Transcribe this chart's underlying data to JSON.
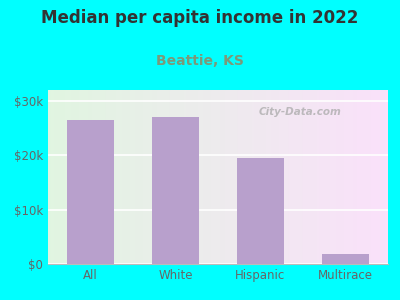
{
  "title": "Median per capita income in 2022",
  "subtitle": "Beattie, KS",
  "categories": [
    "All",
    "White",
    "Hispanic",
    "Multirace"
  ],
  "values": [
    26500,
    27000,
    19500,
    1800
  ],
  "bar_color": "#b8a0cc",
  "background_outer": "#00FFFF",
  "title_color": "#333333",
  "subtitle_color": "#7a9a7a",
  "tick_label_color": "#666666",
  "ytick_labels": [
    "$0",
    "$10k",
    "$20k",
    "$30k"
  ],
  "ytick_values": [
    0,
    10000,
    20000,
    30000
  ],
  "ylim": [
    0,
    32000
  ],
  "title_fontsize": 12,
  "subtitle_fontsize": 10,
  "tick_fontsize": 8.5,
  "watermark_text": "City-Data.com"
}
